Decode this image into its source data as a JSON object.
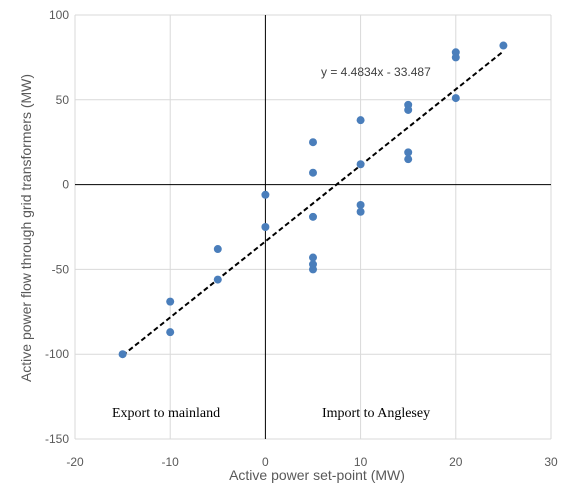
{
  "chart_data": {
    "type": "scatter",
    "xlabel": "Active power set-point (MW)",
    "ylabel": "Active power flow through grid transformers (MW)",
    "xlim": [
      -20,
      30
    ],
    "ylim": [
      -150,
      100
    ],
    "x_ticks": [
      -20,
      -10,
      0,
      10,
      20,
      30
    ],
    "y_ticks": [
      -150,
      -100,
      -50,
      0,
      50,
      100
    ],
    "grid": true,
    "colors": {
      "points": "#4a7ebb",
      "trendline": "#000000",
      "grid": "#d9d9d9",
      "axis_lines": "#000000"
    },
    "series": [
      {
        "x": [
          -15,
          -10,
          -10,
          -5,
          -5,
          0,
          0,
          5,
          5,
          5,
          5,
          5,
          5,
          10,
          10,
          10,
          10,
          15,
          15,
          15,
          15,
          20,
          20,
          20,
          25
        ],
        "y": [
          -100,
          -69,
          -87,
          -38,
          -56,
          -6,
          -25,
          25,
          7,
          -19,
          -43,
          -47,
          -50,
          38,
          12,
          -12,
          -16,
          47,
          44,
          19,
          15,
          78,
          75,
          51,
          82
        ]
      }
    ],
    "trendline": {
      "equation": "y = 4.4834x - 33.487",
      "slope": 4.4834,
      "intercept": -33.487,
      "x_range": [
        -15,
        25
      ]
    },
    "annotations": {
      "left": "Export to mainland",
      "right": "Import to Anglesey"
    }
  }
}
